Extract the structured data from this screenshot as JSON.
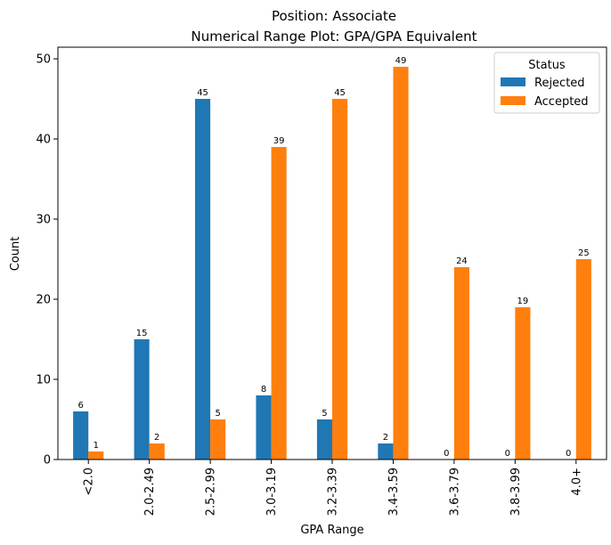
{
  "chart_data": {
    "type": "bar",
    "title": "Position: Associate",
    "subtitle": "Numerical Range Plot: GPA/GPA Equivalent",
    "xlabel": "GPA Range",
    "ylabel": "Count",
    "categories": [
      "<2.0",
      "2.0-2.49",
      "2.5-2.99",
      "3.0-3.19",
      "3.2-3.39",
      "3.4-3.59",
      "3.6-3.79",
      "3.8-3.99",
      "4.0+"
    ],
    "series": [
      {
        "name": "Rejected",
        "color": "#1f77b4",
        "values": [
          6,
          15,
          45,
          8,
          5,
          2,
          0,
          0,
          0
        ]
      },
      {
        "name": "Accepted",
        "color": "#ff7f0e",
        "values": [
          1,
          2,
          5,
          39,
          45,
          49,
          24,
          19,
          25
        ]
      }
    ],
    "ylim": [
      0,
      51.45
    ],
    "yticks": [
      0,
      10,
      20,
      30,
      40,
      50
    ],
    "legend": {
      "title": "Status",
      "placement": "top-right"
    },
    "grid": false
  }
}
